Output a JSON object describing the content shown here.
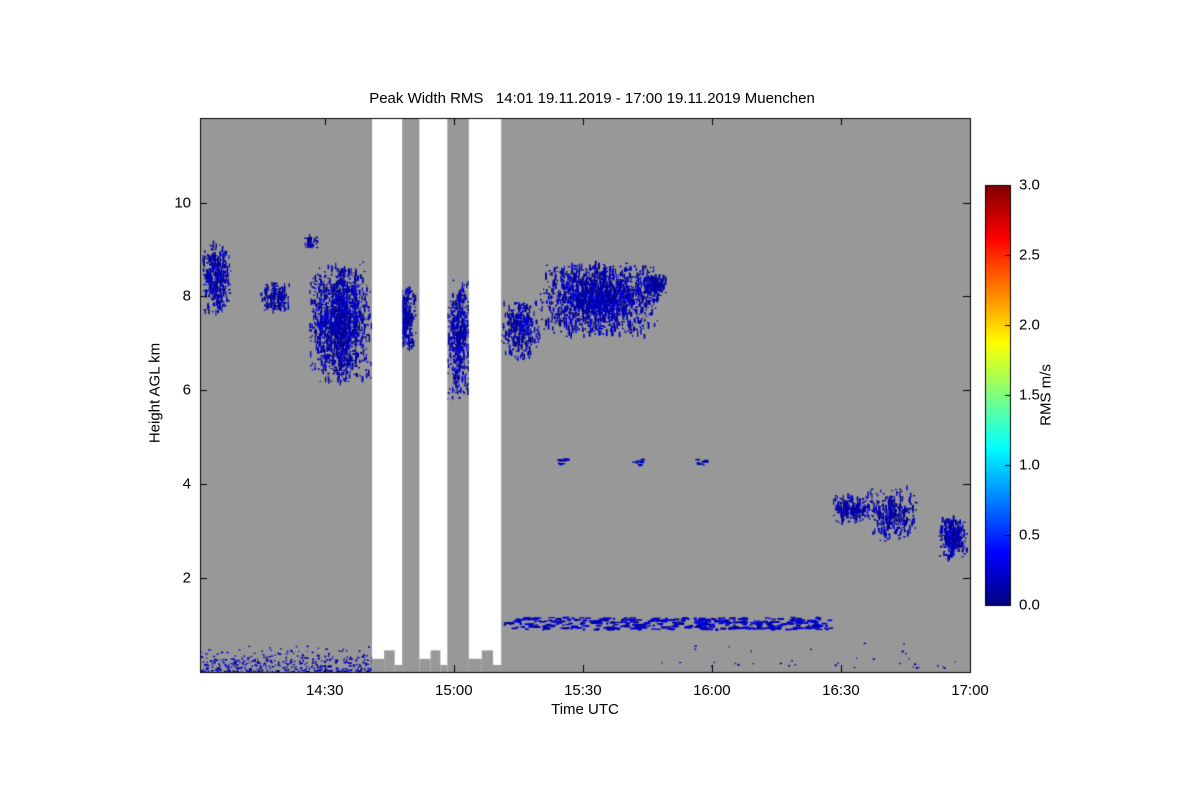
{
  "chart_data": {
    "type": "heatmap",
    "title": "Peak Width RMS   14:01 19.11.2019 - 17:00 19.11.2019 Muenchen",
    "xlabel": "Time UTC",
    "ylabel": "Height AGL km",
    "station": "Muenchen",
    "time_start": "14:01 19.11.2019",
    "time_end": "17:00 19.11.2019",
    "time_range_minutes": [
      841,
      1020
    ],
    "ylim_km": [
      0,
      11.8
    ],
    "x_ticks": [
      {
        "label": "14:30",
        "minutes": 870
      },
      {
        "label": "15:00",
        "minutes": 900
      },
      {
        "label": "15:30",
        "minutes": 930
      },
      {
        "label": "16:00",
        "minutes": 960
      },
      {
        "label": "16:30",
        "minutes": 990
      },
      {
        "label": "17:00",
        "minutes": 1020
      }
    ],
    "y_ticks": [
      {
        "label": "2",
        "km": 2
      },
      {
        "label": "4",
        "km": 4
      },
      {
        "label": "6",
        "km": 6
      },
      {
        "label": "8",
        "km": 8
      },
      {
        "label": "10",
        "km": 10
      }
    ],
    "colorbar": {
      "label": "RMS m/s",
      "colormap": "jet",
      "range": [
        0,
        3
      ],
      "ticks": [
        {
          "label": "0.0",
          "value": 0.0
        },
        {
          "label": "0.5",
          "value": 0.5
        },
        {
          "label": "1.0",
          "value": 1.0
        },
        {
          "label": "1.5",
          "value": 1.5
        },
        {
          "label": "2.0",
          "value": 2.0
        },
        {
          "label": "2.5",
          "value": 2.5
        },
        {
          "label": "3.0",
          "value": 3.0
        }
      ]
    },
    "background_color": "#989898",
    "gap_color": "#ffffff",
    "frame_color": "#000000",
    "gaps_minutes": [
      [
        881,
        888
      ],
      [
        892,
        898.5
      ],
      [
        903.5,
        911
      ]
    ],
    "features": [
      {
        "name": "cloud-a",
        "style": "blob",
        "t": [
          841.5,
          848.5
        ],
        "h": [
          7.6,
          9.25
        ],
        "n": 380,
        "vmax": 0.45
      },
      {
        "name": "cloud-b",
        "style": "blob",
        "t": [
          855,
          862.5
        ],
        "h": [
          7.65,
          8.3
        ],
        "n": 170,
        "vmax": 0.4
      },
      {
        "name": "cloud-c",
        "style": "blob",
        "t": [
          865,
          868.5
        ],
        "h": [
          9.0,
          9.3
        ],
        "n": 40,
        "vmax": 0.35
      },
      {
        "name": "cloud-d",
        "style": "blob",
        "t": [
          866,
          881
        ],
        "h": [
          6.15,
          8.75
        ],
        "n": 1500,
        "vmax": 0.5
      },
      {
        "name": "cloud-e",
        "style": "blob",
        "t": [
          886,
          891.5
        ],
        "h": [
          6.8,
          8.25
        ],
        "n": 300,
        "vmax": 0.45
      },
      {
        "name": "cloud-f",
        "style": "blob",
        "t": [
          898.3,
          904
        ],
        "h": [
          5.75,
          8.4
        ],
        "n": 480,
        "vmax": 0.5
      },
      {
        "name": "cloud-g",
        "style": "blob",
        "t": [
          910.5,
          920.5
        ],
        "h": [
          6.65,
          7.95
        ],
        "n": 340,
        "vmax": 0.45
      },
      {
        "name": "cloud-h",
        "style": "blob",
        "t": [
          919.5,
          948.5
        ],
        "h": [
          7.1,
          8.75
        ],
        "n": 1700,
        "vmax": 0.5
      },
      {
        "name": "cloud-i",
        "style": "blob",
        "t": [
          943.5,
          950
        ],
        "h": [
          7.95,
          8.5
        ],
        "n": 150,
        "vmax": 0.4
      },
      {
        "name": "cloud-j",
        "style": "blob",
        "t": [
          988,
          997
        ],
        "h": [
          3.15,
          3.8
        ],
        "n": 240,
        "vmax": 0.45
      },
      {
        "name": "cloud-k",
        "style": "blob",
        "t": [
          996,
          1008
        ],
        "h": [
          2.75,
          3.95
        ],
        "n": 320,
        "vmax": 0.45
      },
      {
        "name": "cloud-l",
        "style": "blob",
        "t": [
          1012.5,
          1019.5
        ],
        "h": [
          2.4,
          3.3
        ],
        "n": 330,
        "vmax": 0.45
      },
      {
        "name": "boundary-layer-line",
        "style": "dashes",
        "t": [
          911.5,
          988
        ],
        "h": [
          0.92,
          1.18
        ],
        "n": 430,
        "vmax": 0.35
      },
      {
        "name": "surface-speckle-left",
        "style": "sparse",
        "t": [
          841,
          881
        ],
        "h": [
          0.02,
          0.6
        ],
        "n": 420,
        "vmax": 0.35,
        "bottom_weighted": true
      },
      {
        "name": "surface-speckle-right",
        "style": "sparse",
        "t": [
          948,
          1018
        ],
        "h": [
          0.1,
          0.8
        ],
        "n": 36,
        "vmax": 0.3,
        "bottom_weighted": true
      },
      {
        "name": "mid-dashes-1",
        "style": "dashes",
        "t": [
          924,
          926.5
        ],
        "h": [
          4.42,
          4.55
        ],
        "n": 10,
        "vmax": 0.3
      },
      {
        "name": "mid-dashes-2",
        "style": "dashes",
        "t": [
          941.5,
          944
        ],
        "h": [
          4.42,
          4.55
        ],
        "n": 8,
        "vmax": 0.3
      },
      {
        "name": "mid-dashes-3",
        "style": "dashes",
        "t": [
          956,
          958.5
        ],
        "h": [
          4.42,
          4.55
        ],
        "n": 7,
        "vmax": 0.3
      }
    ]
  }
}
